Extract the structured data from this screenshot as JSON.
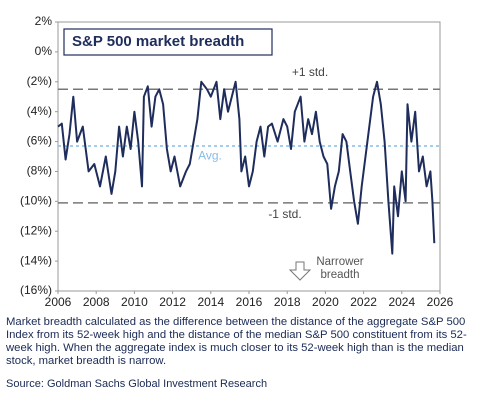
{
  "chart_data": {
    "type": "line",
    "title": "S&P 500 market breadth",
    "x": [
      2006.0,
      2006.2,
      2006.4,
      2006.6,
      2006.8,
      2007.0,
      2007.3,
      2007.6,
      2007.9,
      2008.2,
      2008.5,
      2008.8,
      2009.0,
      2009.2,
      2009.4,
      2009.6,
      2009.8,
      2010.0,
      2010.2,
      2010.4,
      2010.5,
      2010.7,
      2010.9,
      2011.1,
      2011.3,
      2011.5,
      2011.7,
      2011.9,
      2012.1,
      2012.4,
      2012.7,
      2012.9,
      2013.1,
      2013.3,
      2013.5,
      2013.8,
      2014.0,
      2014.3,
      2014.5,
      2014.7,
      2014.9,
      2015.1,
      2015.3,
      2015.5,
      2015.6,
      2015.8,
      2016.0,
      2016.2,
      2016.4,
      2016.6,
      2016.8,
      2017.0,
      2017.2,
      2017.5,
      2017.8,
      2018.0,
      2018.2,
      2018.4,
      2018.7,
      2018.9,
      2019.1,
      2019.3,
      2019.5,
      2019.7,
      2019.9,
      2020.1,
      2020.3,
      2020.5,
      2020.7,
      2020.9,
      2021.1,
      2021.3,
      2021.5,
      2021.7,
      2021.9,
      2022.1,
      2022.3,
      2022.5,
      2022.7,
      2022.9,
      2023.1,
      2023.3,
      2023.5,
      2023.6,
      2023.8,
      2024.0,
      2024.2,
      2024.3,
      2024.5,
      2024.7,
      2024.9,
      2025.1,
      2025.3,
      2025.5,
      2025.6,
      2025.7
    ],
    "series": [
      {
        "color": "#1f2d5c",
        "values": [
          -5,
          -4.8,
          -7.2,
          -5.5,
          -3,
          -6,
          -5,
          -8,
          -7.5,
          -9,
          -7,
          -9.5,
          -8,
          -5,
          -7,
          -5,
          -6.5,
          -4,
          -6,
          -9,
          -3,
          -2.3,
          -5,
          -3,
          -2.5,
          -3.5,
          -6.5,
          -8,
          -7,
          -9,
          -8,
          -7.5,
          -6,
          -4.5,
          -2,
          -2.5,
          -3,
          -2,
          -4.5,
          -2.5,
          -4,
          -3,
          -2,
          -4.5,
          -8,
          -7,
          -9,
          -8,
          -6,
          -5,
          -7,
          -5,
          -4.8,
          -6,
          -4.5,
          -5,
          -6.5,
          -4,
          -3,
          -6,
          -4.5,
          -5.5,
          -4,
          -6,
          -7,
          -7.5,
          -10.5,
          -9,
          -8,
          -5.5,
          -6,
          -8,
          -10,
          -11.5,
          -9,
          -7,
          -5,
          -3,
          -2,
          -3.5,
          -6,
          -10,
          -13.5,
          -9,
          -11,
          -8,
          -10,
          -3.5,
          -6,
          -4,
          -8,
          -7,
          -9,
          -8,
          -10,
          -12.8
        ]
      }
    ],
    "xlim": [
      2006,
      2026
    ],
    "xticks": [
      2006,
      2008,
      2010,
      2012,
      2014,
      2016,
      2018,
      2020,
      2022,
      2024,
      2026
    ],
    "ylim": [
      -16,
      2
    ],
    "yticks": [
      {
        "value": 2,
        "label": "2%"
      },
      {
        "value": 0,
        "label": "0%"
      },
      {
        "value": -2,
        "label": "(2%)"
      },
      {
        "value": -4,
        "label": "(4%)"
      },
      {
        "value": -6,
        "label": "(6%)"
      },
      {
        "value": -8,
        "label": "(8%)"
      },
      {
        "value": -10,
        "label": "(10%)"
      },
      {
        "value": -12,
        "label": "(12%)"
      },
      {
        "value": -14,
        "label": "(14%)"
      },
      {
        "value": -16,
        "label": "(16%)"
      }
    ],
    "reference_lines": [
      {
        "label": "+1 std.",
        "value": -2.5,
        "color": "#777777"
      },
      {
        "label": "Avg.",
        "value": -6.3,
        "color": "#86bde6"
      },
      {
        "label": "-1 std.",
        "value": -10.1,
        "color": "#777777"
      }
    ],
    "annotation": "Narrower breadth",
    "caption": "Market breadth calculated as the difference between the distance of the aggregate S&P 500 Index from its 52-week high and the distance of the median S&P 500 constituent from its 52-week high. When the aggregate index is much closer to its 52-week high than is the median stock, market breadth is narrow.",
    "source": "Source: Goldman Sachs Global Investment Research"
  }
}
